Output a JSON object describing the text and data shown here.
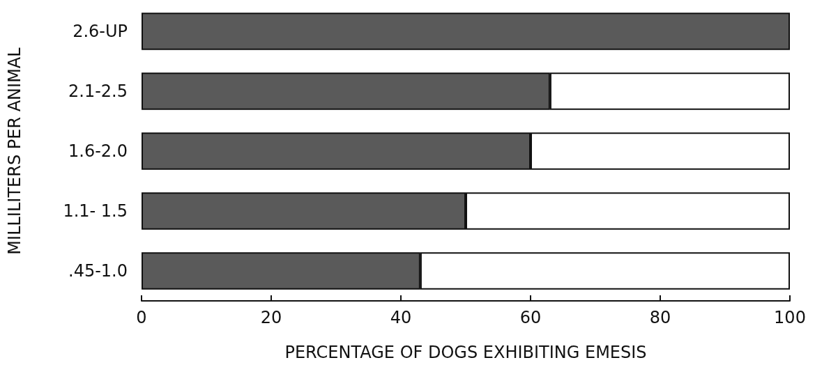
{
  "chart_data": {
    "type": "bar",
    "orientation": "horizontal",
    "stacked": true,
    "xlabel": "PERCENTAGE OF DOGS EXHIBITING EMESIS",
    "ylabel": "MILLILITERS PER ANIMAL",
    "categories": [
      "2.6-UP",
      "2.1-2.5",
      "1.6-2.0",
      "1.1- 1.5",
      ".45-1.0"
    ],
    "series": [
      {
        "color": "#5a5a5a",
        "values": [
          100,
          63,
          60,
          50,
          43
        ]
      },
      {
        "color": "#ffffff",
        "values": [
          0,
          37,
          40,
          50,
          57
        ]
      }
    ],
    "xlim": [
      0,
      100
    ],
    "xticks": [
      0,
      20,
      40,
      60,
      80,
      100
    ],
    "grid": false
  }
}
